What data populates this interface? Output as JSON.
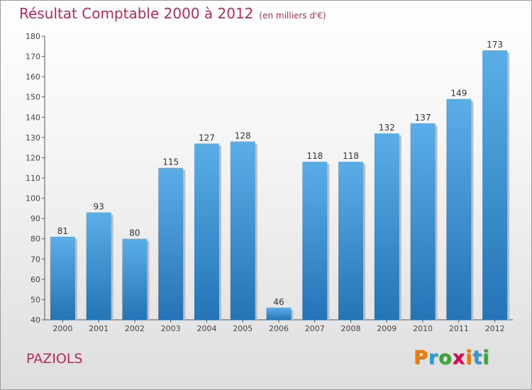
{
  "header": {
    "title": "Résultat Comptable 2000 à 2012",
    "subtitle": "(en milliers d'€)"
  },
  "footer": {
    "commune": "PAZIOLS"
  },
  "brand": {
    "letters": [
      {
        "char": "P",
        "color": "#f07d00"
      },
      {
        "char": "r",
        "color": "#2a9fd6"
      },
      {
        "char": "o",
        "color": "#39a935"
      },
      {
        "char": "x",
        "color": "#e3004f"
      },
      {
        "char": "i",
        "color": "#f07d00"
      },
      {
        "char": "t",
        "color": "#2a9fd6"
      },
      {
        "char": "i",
        "color": "#39a935"
      }
    ]
  },
  "colors": {
    "bar_top": "#5aaee8",
    "bar_bottom": "#2574b6",
    "axis": "#555555",
    "title": "#c0285a"
  },
  "chart_data": {
    "type": "bar",
    "categories": [
      "2000",
      "2001",
      "2002",
      "2003",
      "2004",
      "2005",
      "2006",
      "2007",
      "2008",
      "2009",
      "2010",
      "2011",
      "2012"
    ],
    "values": [
      81,
      93,
      80,
      115,
      127,
      128,
      46,
      118,
      118,
      132,
      137,
      149,
      173
    ],
    "title": "Résultat Comptable 2000 à 2012",
    "xlabel": "",
    "ylabel": "",
    "ylim": [
      40,
      180
    ],
    "yticks": [
      40,
      50,
      60,
      70,
      80,
      90,
      100,
      110,
      120,
      130,
      140,
      150,
      160,
      170,
      180
    ],
    "grid": false
  }
}
